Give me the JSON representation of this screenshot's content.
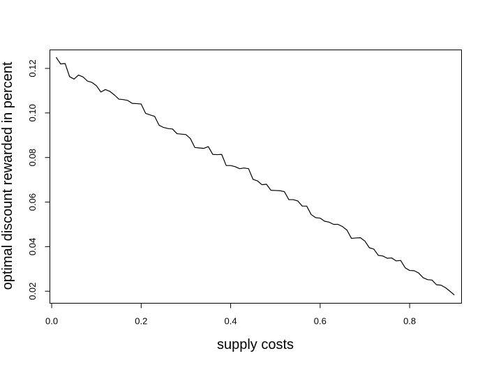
{
  "chart_data": {
    "type": "line",
    "title": "",
    "xlabel": "supply costs",
    "ylabel": "optimal discount rewarded in percent",
    "xlim": [
      -0.004,
      0.916
    ],
    "ylim": [
      0.0146,
      0.1283
    ],
    "xticks": [
      {
        "value": 0.0,
        "label": "0.0"
      },
      {
        "value": 0.2,
        "label": "0.2"
      },
      {
        "value": 0.4,
        "label": "0.4"
      },
      {
        "value": 0.6,
        "label": "0.6"
      },
      {
        "value": 0.8,
        "label": "0.8"
      }
    ],
    "yticks": [
      {
        "value": 0.02,
        "label": "0.02"
      },
      {
        "value": 0.04,
        "label": "0.04"
      },
      {
        "value": 0.06,
        "label": "0.06"
      },
      {
        "value": 0.08,
        "label": "0.08"
      },
      {
        "value": 0.1,
        "label": "0.10"
      },
      {
        "value": 0.12,
        "label": "0.12"
      }
    ],
    "grid": false,
    "legend": "none",
    "series": [
      {
        "color": "#000000",
        "x": [
          0.01,
          0.02,
          0.03,
          0.04,
          0.05,
          0.06,
          0.07,
          0.08,
          0.09,
          0.1,
          0.11,
          0.12,
          0.13,
          0.14,
          0.15,
          0.16,
          0.17,
          0.18,
          0.19,
          0.2,
          0.21,
          0.22,
          0.23,
          0.24,
          0.25,
          0.26,
          0.27,
          0.28,
          0.29,
          0.3,
          0.31,
          0.32,
          0.33,
          0.34,
          0.35,
          0.36,
          0.37,
          0.38,
          0.39,
          0.4,
          0.41,
          0.42,
          0.43,
          0.44,
          0.45,
          0.46,
          0.47,
          0.48,
          0.49,
          0.5,
          0.51,
          0.52,
          0.53,
          0.54,
          0.55,
          0.56,
          0.57,
          0.58,
          0.59,
          0.6,
          0.61,
          0.62,
          0.63,
          0.64,
          0.65,
          0.66,
          0.67,
          0.68,
          0.69,
          0.7,
          0.71,
          0.72,
          0.73,
          0.74,
          0.75,
          0.76,
          0.77,
          0.78,
          0.79,
          0.8,
          0.81,
          0.82,
          0.83,
          0.84,
          0.85,
          0.86,
          0.87,
          0.88,
          0.89,
          0.9
        ],
        "y": [
          0.125,
          0.122,
          0.1222,
          0.1163,
          0.1152,
          0.117,
          0.1162,
          0.1143,
          0.1137,
          0.1122,
          0.1094,
          0.1105,
          0.1097,
          0.1081,
          0.1062,
          0.106,
          0.1056,
          0.1043,
          0.1042,
          0.104,
          0.0998,
          0.0991,
          0.0985,
          0.0945,
          0.0935,
          0.093,
          0.0928,
          0.0907,
          0.0905,
          0.0903,
          0.0885,
          0.0845,
          0.0843,
          0.0841,
          0.0849,
          0.0814,
          0.0813,
          0.0814,
          0.0764,
          0.0764,
          0.0759,
          0.075,
          0.0753,
          0.075,
          0.0702,
          0.0695,
          0.0678,
          0.068,
          0.0653,
          0.0652,
          0.0651,
          0.0647,
          0.0611,
          0.0611,
          0.0605,
          0.0582,
          0.0582,
          0.0544,
          0.053,
          0.0528,
          0.0514,
          0.051,
          0.05,
          0.05,
          0.049,
          0.0474,
          0.0437,
          0.0439,
          0.044,
          0.0425,
          0.0395,
          0.0389,
          0.0361,
          0.0358,
          0.0348,
          0.0349,
          0.0336,
          0.0338,
          0.0305,
          0.0293,
          0.0292,
          0.0282,
          0.0261,
          0.0252,
          0.025,
          0.0229,
          0.0227,
          0.0216,
          0.02,
          0.0183
        ]
      }
    ]
  }
}
